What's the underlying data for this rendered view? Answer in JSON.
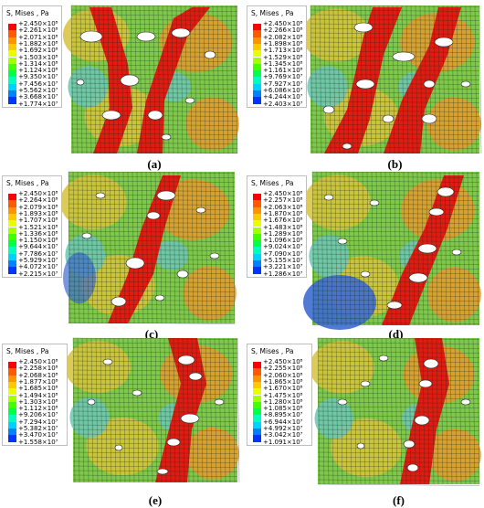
{
  "panels": [
    {
      "caption": "(a)",
      "legend_title": "S, Mises , Pa",
      "legend_values": [
        "+2.450×10⁸",
        "+2.261×10⁸",
        "+2.071×10⁸",
        "+1.882×10⁸",
        "+1.692×10⁸",
        "+1.503×10⁸",
        "+1.314×10⁸",
        "+1.124×10⁸",
        "+9.350×10⁷",
        "+7.456×10⁷",
        "+5.562×10⁷",
        "+3.668×10⁷",
        "+1.774×10⁷"
      ]
    },
    {
      "caption": "(b)",
      "legend_title": "S, Mises , Pa",
      "legend_values": [
        "+2.450×10⁸",
        "+2.266×10⁸",
        "+2.082×10⁸",
        "+1.898×10⁸",
        "+1.713×10⁸",
        "+1.529×10⁸",
        "+1.345×10⁸",
        "+1.161×10⁸",
        "+9.769×10⁷",
        "+7.927×10⁷",
        "+6.086×10⁷",
        "+4.244×10⁷",
        "+2.403×10⁷"
      ]
    },
    {
      "caption": "(c)",
      "legend_title": "S, Mises , Pa",
      "legend_values": [
        "+2.450×10⁸",
        "+2.264×10⁸",
        "+2.079×10⁸",
        "+1.893×10⁸",
        "+1.707×10⁸",
        "+1.521×10⁸",
        "+1.336×10⁸",
        "+1.150×10⁸",
        "+9.644×10⁷",
        "+7.786×10⁷",
        "+5.929×10⁷",
        "+4.072×10⁷",
        "+2.215×10⁷"
      ]
    },
    {
      "caption": "(d)",
      "legend_title": "S, Mises , Pa",
      "legend_values": [
        "+2.450×10⁸",
        "+2.257×10⁸",
        "+2.063×10⁸",
        "+1.870×10⁸",
        "+1.676×10⁸",
        "+1.483×10⁸",
        "+1.289×10⁸",
        "+1.096×10⁸",
        "+9.024×10⁷",
        "+7.090×10⁷",
        "+5.155×10⁷",
        "+3.221×10⁷",
        "+1.286×10⁷"
      ]
    },
    {
      "caption": "(e)",
      "legend_title": "S, Mises , Pa",
      "legend_values": [
        "+2.450×10⁸",
        "+2.258×10⁸",
        "+2.068×10⁸",
        "+1.877×10⁸",
        "+1.685×10⁸",
        "+1.494×10⁸",
        "+1.303×10⁸",
        "+1.112×10⁸",
        "+9.206×10⁷",
        "+7.294×10⁷",
        "+5.382×10⁷",
        "+3.470×10⁷",
        "+1.558×10⁷"
      ]
    },
    {
      "caption": "(f)",
      "legend_title": "S, Mises , Pa",
      "legend_values": [
        "+2.450×10⁸",
        "+2.255×10⁸",
        "+2.060×10⁸",
        "+1.865×10⁸",
        "+1.670×10⁸",
        "+1.475×10⁸",
        "+1.280×10⁸",
        "+1.085×10⁸",
        "+8.895×10⁷",
        "+6.944×10⁷",
        "+4.992×10⁷",
        "+3.042×10⁷",
        "+1.091×10⁷"
      ]
    }
  ],
  "colors": {
    "scale": [
      "#ff0000",
      "#ff5a00",
      "#ff9400",
      "#ffc800",
      "#e9ff00",
      "#a4ff00",
      "#44ff00",
      "#00ff4c",
      "#00ffbe",
      "#00d2ff",
      "#0082ff",
      "#0034ff",
      "#0000ff"
    ],
    "band_red": "#e01b12",
    "field_green": "#7ec94b",
    "field_yellow": "#d6c23c",
    "field_orange": "#e39a2e",
    "field_cyan": "#6cc7b6",
    "field_blue": "#3d6cd0",
    "mesh": "#1d2a18"
  }
}
